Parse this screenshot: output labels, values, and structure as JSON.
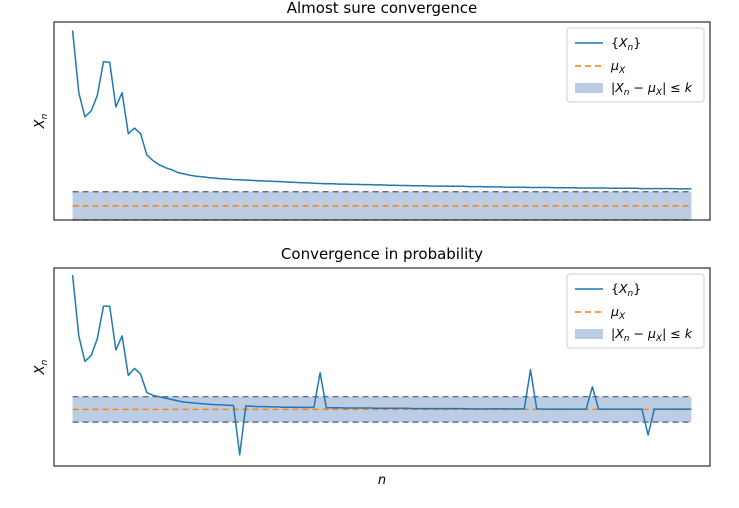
{
  "chart_data": [
    {
      "type": "line",
      "title": "Almost sure convergence",
      "xlabel": "",
      "ylabel": "X_n",
      "xlim": [
        -3,
        103
      ],
      "ylim": [
        -0.5,
        6.5
      ],
      "xticks_visible": false,
      "yticks_visible": false,
      "grid": false,
      "legend_placement": "top-right",
      "mu_x": 0,
      "k": 0.5,
      "series": [
        {
          "name": "{X_n}",
          "kind": "line",
          "color": "#1f77b4",
          "x": [
            0,
            1,
            2,
            3,
            4,
            5,
            6,
            7,
            8,
            9,
            10,
            11,
            12,
            13,
            14,
            15,
            16,
            17,
            18,
            19,
            20,
            21,
            22,
            23,
            24,
            25,
            26,
            27,
            28,
            29,
            30,
            31,
            32,
            33,
            34,
            35,
            36,
            37,
            38,
            39,
            40,
            41,
            42,
            43,
            44,
            45,
            46,
            47,
            48,
            49,
            50,
            51,
            52,
            53,
            54,
            55,
            56,
            57,
            58,
            59,
            60,
            61,
            62,
            63,
            64,
            65,
            66,
            67,
            68,
            69,
            70,
            71,
            72,
            73,
            74,
            75,
            76,
            77,
            78,
            79,
            80,
            81,
            82,
            83,
            84,
            85,
            86,
            87,
            88,
            89,
            90,
            91,
            92,
            93,
            94,
            95,
            96,
            97,
            98,
            99,
            100
          ],
          "y": [
            6.2,
            4.0,
            3.15,
            3.35,
            3.9,
            5.1,
            5.08,
            3.5,
            4.0,
            2.55,
            2.75,
            2.55,
            1.8,
            1.6,
            1.45,
            1.35,
            1.28,
            1.18,
            1.13,
            1.08,
            1.05,
            1.03,
            1.0,
            0.98,
            0.96,
            0.95,
            0.93,
            0.92,
            0.91,
            0.9,
            0.89,
            0.88,
            0.87,
            0.86,
            0.85,
            0.84,
            0.83,
            0.82,
            0.81,
            0.8,
            0.79,
            0.78,
            0.78,
            0.77,
            0.77,
            0.76,
            0.76,
            0.75,
            0.75,
            0.74,
            0.74,
            0.73,
            0.73,
            0.72,
            0.72,
            0.71,
            0.71,
            0.71,
            0.7,
            0.7,
            0.7,
            0.69,
            0.69,
            0.69,
            0.68,
            0.68,
            0.68,
            0.67,
            0.67,
            0.67,
            0.66,
            0.66,
            0.66,
            0.66,
            0.65,
            0.65,
            0.65,
            0.65,
            0.64,
            0.64,
            0.64,
            0.64,
            0.63,
            0.63,
            0.63,
            0.63,
            0.63,
            0.62,
            0.62,
            0.62,
            0.62,
            0.62,
            0.61,
            0.61,
            0.61,
            0.61,
            0.61,
            0.61,
            0.6,
            0.6,
            0.6
          ]
        },
        {
          "name": "μ_X",
          "kind": "hline-dashed",
          "color": "#ff7f0e",
          "y": 0
        },
        {
          "name": "|X_n − μ_X| ≤ k",
          "kind": "band",
          "color": "#b0c4de",
          "y": [
            -0.5,
            0.5
          ]
        }
      ],
      "legend": [
        "{X_n}",
        "μ_X",
        "|X_n − μ_X| ≤ k"
      ]
    },
    {
      "type": "line",
      "title": "Convergence in probability",
      "xlabel": "n",
      "ylabel": "X_n",
      "xlim": [
        -3,
        103
      ],
      "ylim": [
        -2.0,
        5.0
      ],
      "xticks_visible": false,
      "yticks_visible": false,
      "grid": false,
      "legend_placement": "top-right",
      "mu_x": 0,
      "k": 0.45,
      "series": [
        {
          "name": "{X_n}",
          "kind": "line",
          "color": "#1f77b4",
          "x": [
            0,
            1,
            2,
            3,
            4,
            5,
            6,
            7,
            8,
            9,
            10,
            11,
            12,
            13,
            14,
            15,
            16,
            17,
            18,
            19,
            20,
            21,
            22,
            23,
            24,
            25,
            26,
            27,
            28,
            29,
            30,
            31,
            32,
            33,
            34,
            35,
            36,
            37,
            38,
            39,
            40,
            41,
            42,
            43,
            44,
            45,
            46,
            47,
            48,
            49,
            50,
            51,
            52,
            53,
            54,
            55,
            56,
            57,
            58,
            59,
            60,
            61,
            62,
            63,
            64,
            65,
            66,
            67,
            68,
            69,
            70,
            71,
            72,
            73,
            74,
            75,
            76,
            77,
            78,
            79,
            80,
            81,
            82,
            83,
            84,
            85,
            86,
            87,
            88,
            89,
            90,
            91,
            92,
            93,
            94,
            95,
            96,
            97,
            98,
            99,
            100
          ],
          "y": [
            4.75,
            2.6,
            1.7,
            1.9,
            2.5,
            3.65,
            3.65,
            2.1,
            2.6,
            1.2,
            1.45,
            1.25,
            0.6,
            0.5,
            0.45,
            0.4,
            0.35,
            0.3,
            0.26,
            0.24,
            0.22,
            0.2,
            0.18,
            0.17,
            0.16,
            0.15,
            0.14,
            0.13,
            0.12,
            0.11,
            0.1,
            0.1,
            0.09,
            0.09,
            0.08,
            0.08,
            0.08,
            0.07,
            0.07,
            0.07,
            0.06,
            0.06,
            0.06,
            0.06,
            0.05,
            0.05,
            0.05,
            0.05,
            0.05,
            0.04,
            0.04,
            0.04,
            0.04,
            0.04,
            0.04,
            0.03,
            0.03,
            0.03,
            0.03,
            0.03,
            0.03,
            0.03,
            0.03,
            0.03,
            0.02,
            0.02,
            0.02,
            0.02,
            0.02,
            0.02,
            0.02,
            0.02,
            0.02,
            0.02,
            0.02,
            0.02,
            0.01,
            0.01,
            0.01,
            0.01,
            0.01,
            0.01,
            0.01,
            0.01,
            0.01,
            0.01,
            0.01,
            0.01,
            0.01,
            0.01,
            0.01,
            0.01,
            0.01,
            0.01,
            0.01,
            0.01,
            0.01,
            0.01,
            0.01,
            0.01,
            0.01
          ],
          "spikes": [
            [
              27,
              -1.6
            ],
            [
              40,
              1.3
            ],
            [
              74,
              1.4
            ],
            [
              84,
              0.8
            ],
            [
              93,
              -0.9
            ]
          ]
        },
        {
          "name": "μ_X",
          "kind": "hline-dashed",
          "color": "#ff7f0e",
          "y": 0
        },
        {
          "name": "|X_n − μ_X| ≤ k",
          "kind": "band",
          "color": "#b0c4de",
          "y": [
            -0.45,
            0.45
          ]
        }
      ],
      "legend": [
        "{X_n}",
        "μ_X",
        "|X_n − μ_X| ≤ k"
      ]
    }
  ]
}
